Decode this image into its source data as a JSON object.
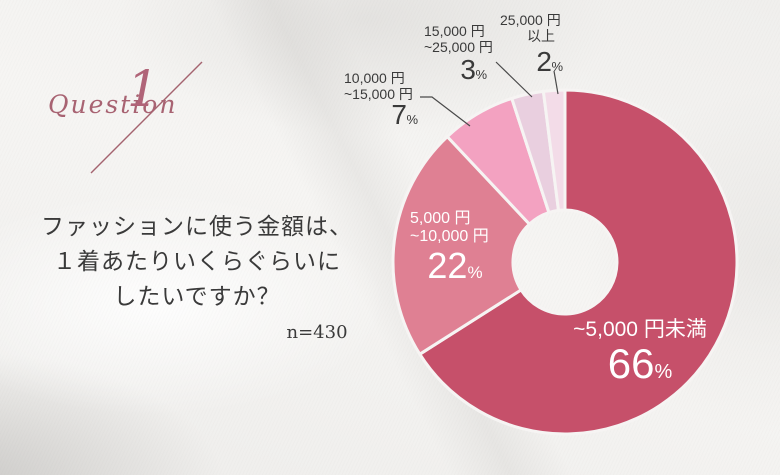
{
  "header": {
    "question_word": "Question",
    "question_number": "1"
  },
  "question": {
    "lines": [
      "ファッションに使う金額は、",
      "１着あたりいくらぐらいに",
      "したいですか？"
    ],
    "sample_size_label": "n=430"
  },
  "colors": {
    "accent_rose": "#a86372",
    "slice_under_5000": "#c6506a",
    "slice_5000_10000": "#df8093",
    "slice_10000_15000": "#f3a2c1",
    "slice_15000_25000": "#e9cfdf",
    "slice_25000_over": "#f3dce8",
    "label_dark": "#3a3a3a",
    "label_light": "#ffffff",
    "leader_line": "#4a4a4a"
  },
  "chart_data": {
    "type": "pie",
    "subtype": "donut",
    "title": "ファッションに使う金額は、１着あたりいくらぐらいにしたいですか？",
    "sample_size": "n=430",
    "start_angle_deg": 0,
    "direction": "clockwise",
    "inner_radius_ratio": 0.3,
    "percent_suffix": "%",
    "segments": [
      {
        "label": "~5,000 円未満",
        "value": 66,
        "pct": "66",
        "color": "#c6506a",
        "label_lines": [
          "~5,000 円未満"
        ],
        "label_placement": "inside"
      },
      {
        "label": "5,000 円~10,000 円",
        "value": 22,
        "pct": "22",
        "color": "#df8093",
        "label_lines": [
          "5,000 円",
          "~10,000 円"
        ],
        "label_placement": "inside"
      },
      {
        "label": "10,000 円~15,000 円",
        "value": 7,
        "pct": "7",
        "color": "#f3a2c1",
        "label_lines": [
          "10,000 円",
          "~15,000 円"
        ],
        "label_placement": "outside"
      },
      {
        "label": "15,000 円~25,000 円",
        "value": 3,
        "pct": "3",
        "color": "#e9cfdf",
        "label_lines": [
          "15,000 円",
          "~25,000 円"
        ],
        "label_placement": "outside"
      },
      {
        "label": "25,000 円以上",
        "value": 2,
        "pct": "2",
        "color": "#f3dce8",
        "label_lines": [
          "25,000 円",
          "以上"
        ],
        "label_placement": "outside"
      }
    ]
  }
}
